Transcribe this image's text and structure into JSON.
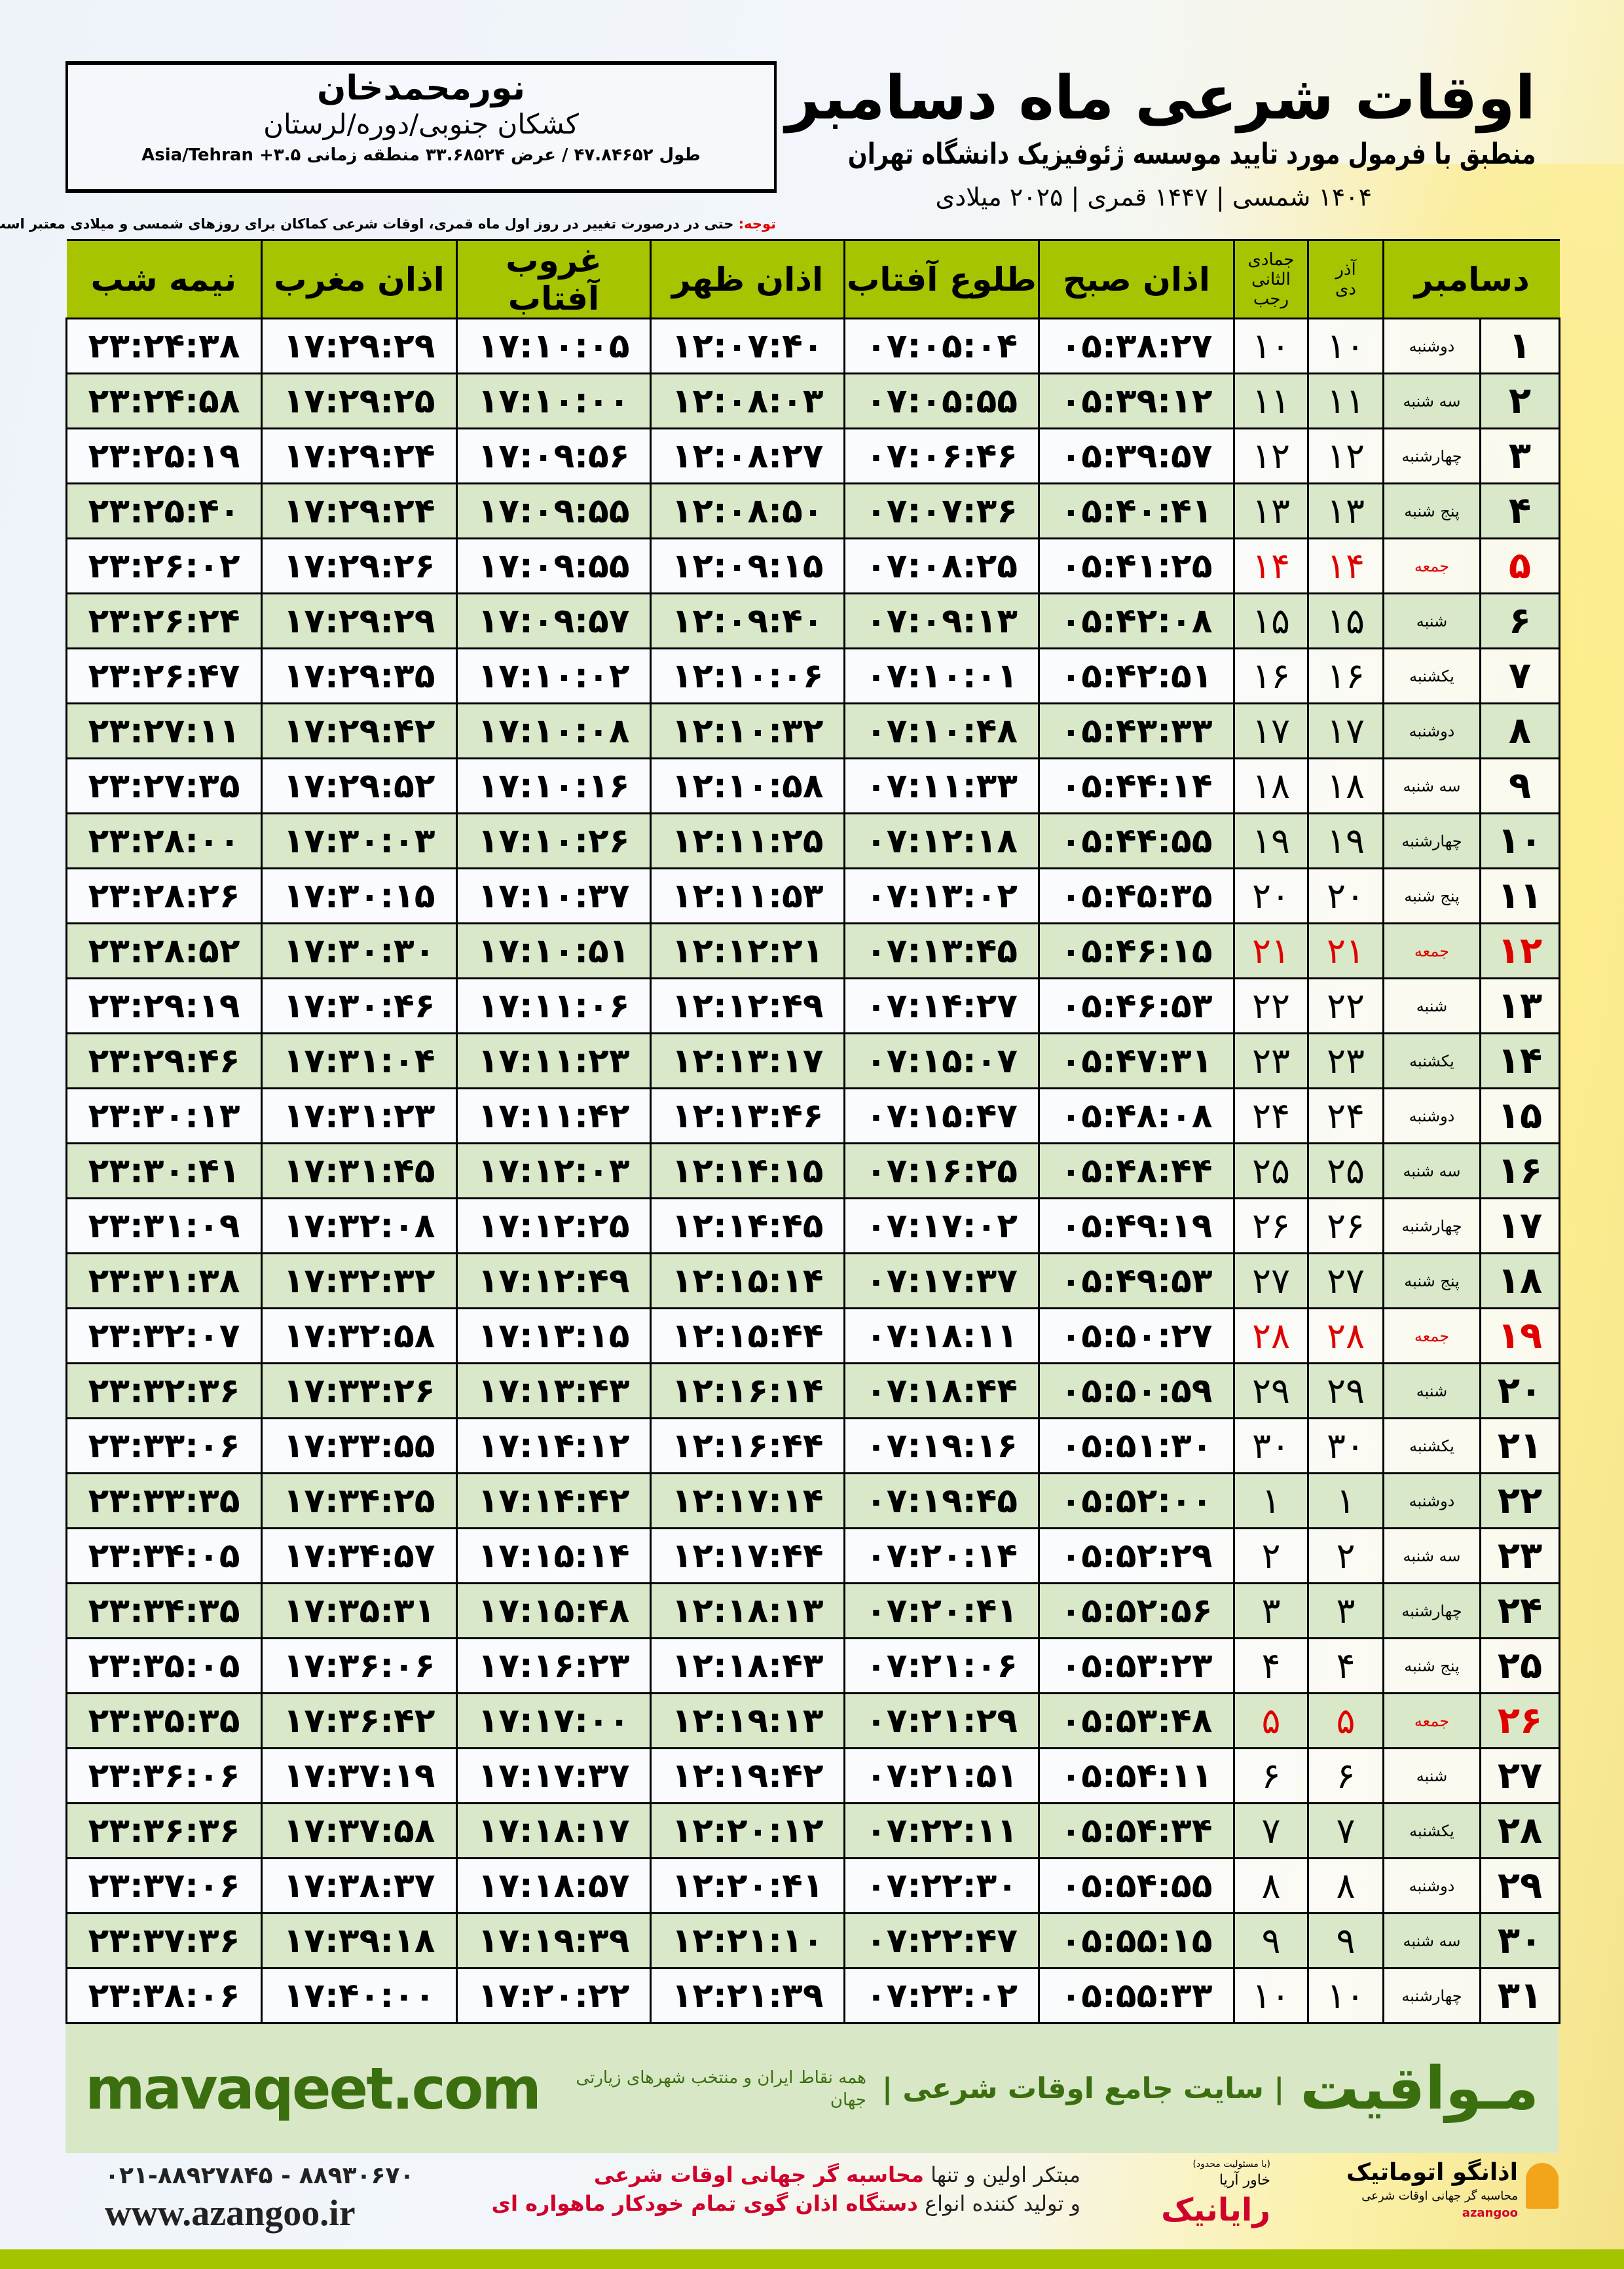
{
  "header": {
    "title": "اوقات شرعی ماه دسامبر",
    "subtitle": "منطبق با فرمول مورد تایید موسسه ژئوفیزیک دانشگاه تهران",
    "dates": "۱۴۰۴ شمسی | ۱۴۴۷ قمری | ۲۰۲۵ میلادی"
  },
  "location": {
    "city": "نورمحمدخان",
    "region": "کشکان جنوبی/دوره/لرستان",
    "coords": "طول ۴۷.۸۴۶۵۲ / عرض ۳۳.۶۸۵۲۴ منطقه زمانی ۳.۵+ Asia/Tehran"
  },
  "note": {
    "label": "توجه:",
    "text": " حتی در درصورت تغییر در روز اول ماه قمری، اوقات شرعی کماکان برای روزهای شمسی و میلادی معتبر است."
  },
  "table": {
    "headers": {
      "day": "دسامبر",
      "shamsi_top": "آذر",
      "shamsi_bottom": "دی",
      "hijri_top": "جمادی الثانی",
      "hijri_bottom": "رجب",
      "fajr": "اذان صبح",
      "sunrise": "طلوع آفتاب",
      "dhuhr": "اذان ظهر",
      "sunset": "غروب آفتاب",
      "maghrib": "اذان مغرب",
      "midnight": "نیمه شب"
    },
    "friday_color": "#e00000",
    "header_color": "#a8c400",
    "rows": [
      {
        "day": "۱",
        "weekday": "دوشنبه",
        "shamsi": "۱۰",
        "hijri": "۱۰",
        "fajr": "۰۵:۳۸:۲۷",
        "sunrise": "۰۷:۰۵:۰۴",
        "dhuhr": "۱۲:۰۷:۴۰",
        "sunset": "۱۷:۱۰:۰۵",
        "maghrib": "۱۷:۲۹:۲۹",
        "midnight": "۲۳:۲۴:۳۸"
      },
      {
        "day": "۲",
        "weekday": "سه شنبه",
        "shamsi": "۱۱",
        "hijri": "۱۱",
        "fajr": "۰۵:۳۹:۱۲",
        "sunrise": "۰۷:۰۵:۵۵",
        "dhuhr": "۱۲:۰۸:۰۳",
        "sunset": "۱۷:۱۰:۰۰",
        "maghrib": "۱۷:۲۹:۲۵",
        "midnight": "۲۳:۲۴:۵۸"
      },
      {
        "day": "۳",
        "weekday": "چهارشنبه",
        "shamsi": "۱۲",
        "hijri": "۱۲",
        "fajr": "۰۵:۳۹:۵۷",
        "sunrise": "۰۷:۰۶:۴۶",
        "dhuhr": "۱۲:۰۸:۲۷",
        "sunset": "۱۷:۰۹:۵۶",
        "maghrib": "۱۷:۲۹:۲۴",
        "midnight": "۲۳:۲۵:۱۹"
      },
      {
        "day": "۴",
        "weekday": "پنج شنبه",
        "shamsi": "۱۳",
        "hijri": "۱۳",
        "fajr": "۰۵:۴۰:۴۱",
        "sunrise": "۰۷:۰۷:۳۶",
        "dhuhr": "۱۲:۰۸:۵۰",
        "sunset": "۱۷:۰۹:۵۵",
        "maghrib": "۱۷:۲۹:۲۴",
        "midnight": "۲۳:۲۵:۴۰"
      },
      {
        "day": "۵",
        "weekday": "جمعه",
        "friday": true,
        "shamsi": "۱۴",
        "hijri": "۱۴",
        "fajr": "۰۵:۴۱:۲۵",
        "sunrise": "۰۷:۰۸:۲۵",
        "dhuhr": "۱۲:۰۹:۱۵",
        "sunset": "۱۷:۰۹:۵۵",
        "maghrib": "۱۷:۲۹:۲۶",
        "midnight": "۲۳:۲۶:۰۲"
      },
      {
        "day": "۶",
        "weekday": "شنبه",
        "shamsi": "۱۵",
        "hijri": "۱۵",
        "fajr": "۰۵:۴۲:۰۸",
        "sunrise": "۰۷:۰۹:۱۳",
        "dhuhr": "۱۲:۰۹:۴۰",
        "sunset": "۱۷:۰۹:۵۷",
        "maghrib": "۱۷:۲۹:۲۹",
        "midnight": "۲۳:۲۶:۲۴"
      },
      {
        "day": "۷",
        "weekday": "یکشنبه",
        "shamsi": "۱۶",
        "hijri": "۱۶",
        "fajr": "۰۵:۴۲:۵۱",
        "sunrise": "۰۷:۱۰:۰۱",
        "dhuhr": "۱۲:۱۰:۰۶",
        "sunset": "۱۷:۱۰:۰۲",
        "maghrib": "۱۷:۲۹:۳۵",
        "midnight": "۲۳:۲۶:۴۷"
      },
      {
        "day": "۸",
        "weekday": "دوشنبه",
        "shamsi": "۱۷",
        "hijri": "۱۷",
        "fajr": "۰۵:۴۳:۳۳",
        "sunrise": "۰۷:۱۰:۴۸",
        "dhuhr": "۱۲:۱۰:۳۲",
        "sunset": "۱۷:۱۰:۰۸",
        "maghrib": "۱۷:۲۹:۴۲",
        "midnight": "۲۳:۲۷:۱۱"
      },
      {
        "day": "۹",
        "weekday": "سه شنبه",
        "shamsi": "۱۸",
        "hijri": "۱۸",
        "fajr": "۰۵:۴۴:۱۴",
        "sunrise": "۰۷:۱۱:۳۳",
        "dhuhr": "۱۲:۱۰:۵۸",
        "sunset": "۱۷:۱۰:۱۶",
        "maghrib": "۱۷:۲۹:۵۲",
        "midnight": "۲۳:۲۷:۳۵"
      },
      {
        "day": "۱۰",
        "weekday": "چهارشنبه",
        "shamsi": "۱۹",
        "hijri": "۱۹",
        "fajr": "۰۵:۴۴:۵۵",
        "sunrise": "۰۷:۱۲:۱۸",
        "dhuhr": "۱۲:۱۱:۲۵",
        "sunset": "۱۷:۱۰:۲۶",
        "maghrib": "۱۷:۳۰:۰۳",
        "midnight": "۲۳:۲۸:۰۰"
      },
      {
        "day": "۱۱",
        "weekday": "پنج شنبه",
        "shamsi": "۲۰",
        "hijri": "۲۰",
        "fajr": "۰۵:۴۵:۳۵",
        "sunrise": "۰۷:۱۳:۰۲",
        "dhuhr": "۱۲:۱۱:۵۳",
        "sunset": "۱۷:۱۰:۳۷",
        "maghrib": "۱۷:۳۰:۱۵",
        "midnight": "۲۳:۲۸:۲۶"
      },
      {
        "day": "۱۲",
        "weekday": "جمعه",
        "friday": true,
        "shamsi": "۲۱",
        "hijri": "۲۱",
        "fajr": "۰۵:۴۶:۱۵",
        "sunrise": "۰۷:۱۳:۴۵",
        "dhuhr": "۱۲:۱۲:۲۱",
        "sunset": "۱۷:۱۰:۵۱",
        "maghrib": "۱۷:۳۰:۳۰",
        "midnight": "۲۳:۲۸:۵۲"
      },
      {
        "day": "۱۳",
        "weekday": "شنبه",
        "shamsi": "۲۲",
        "hijri": "۲۲",
        "fajr": "۰۵:۴۶:۵۳",
        "sunrise": "۰۷:۱۴:۲۷",
        "dhuhr": "۱۲:۱۲:۴۹",
        "sunset": "۱۷:۱۱:۰۶",
        "maghrib": "۱۷:۳۰:۴۶",
        "midnight": "۲۳:۲۹:۱۹"
      },
      {
        "day": "۱۴",
        "weekday": "یکشنبه",
        "shamsi": "۲۳",
        "hijri": "۲۳",
        "fajr": "۰۵:۴۷:۳۱",
        "sunrise": "۰۷:۱۵:۰۷",
        "dhuhr": "۱۲:۱۳:۱۷",
        "sunset": "۱۷:۱۱:۲۳",
        "maghrib": "۱۷:۳۱:۰۴",
        "midnight": "۲۳:۲۹:۴۶"
      },
      {
        "day": "۱۵",
        "weekday": "دوشنبه",
        "shamsi": "۲۴",
        "hijri": "۲۴",
        "fajr": "۰۵:۴۸:۰۸",
        "sunrise": "۰۷:۱۵:۴۷",
        "dhuhr": "۱۲:۱۳:۴۶",
        "sunset": "۱۷:۱۱:۴۲",
        "maghrib": "۱۷:۳۱:۲۳",
        "midnight": "۲۳:۳۰:۱۳"
      },
      {
        "day": "۱۶",
        "weekday": "سه شنبه",
        "shamsi": "۲۵",
        "hijri": "۲۵",
        "fajr": "۰۵:۴۸:۴۴",
        "sunrise": "۰۷:۱۶:۲۵",
        "dhuhr": "۱۲:۱۴:۱۵",
        "sunset": "۱۷:۱۲:۰۳",
        "maghrib": "۱۷:۳۱:۴۵",
        "midnight": "۲۳:۳۰:۴۱"
      },
      {
        "day": "۱۷",
        "weekday": "چهارشنبه",
        "shamsi": "۲۶",
        "hijri": "۲۶",
        "fajr": "۰۵:۴۹:۱۹",
        "sunrise": "۰۷:۱۷:۰۲",
        "dhuhr": "۱۲:۱۴:۴۵",
        "sunset": "۱۷:۱۲:۲۵",
        "maghrib": "۱۷:۳۲:۰۸",
        "midnight": "۲۳:۳۱:۰۹"
      },
      {
        "day": "۱۸",
        "weekday": "پنج شنبه",
        "shamsi": "۲۷",
        "hijri": "۲۷",
        "fajr": "۰۵:۴۹:۵۳",
        "sunrise": "۰۷:۱۷:۳۷",
        "dhuhr": "۱۲:۱۵:۱۴",
        "sunset": "۱۷:۱۲:۴۹",
        "maghrib": "۱۷:۳۲:۳۲",
        "midnight": "۲۳:۳۱:۳۸"
      },
      {
        "day": "۱۹",
        "weekday": "جمعه",
        "friday": true,
        "shamsi": "۲۸",
        "hijri": "۲۸",
        "fajr": "۰۵:۵۰:۲۷",
        "sunrise": "۰۷:۱۸:۱۱",
        "dhuhr": "۱۲:۱۵:۴۴",
        "sunset": "۱۷:۱۳:۱۵",
        "maghrib": "۱۷:۳۲:۵۸",
        "midnight": "۲۳:۳۲:۰۷"
      },
      {
        "day": "۲۰",
        "weekday": "شنبه",
        "shamsi": "۲۹",
        "hijri": "۲۹",
        "fajr": "۰۵:۵۰:۵۹",
        "sunrise": "۰۷:۱۸:۴۴",
        "dhuhr": "۱۲:۱۶:۱۴",
        "sunset": "۱۷:۱۳:۴۳",
        "maghrib": "۱۷:۳۳:۲۶",
        "midnight": "۲۳:۳۲:۳۶"
      },
      {
        "day": "۲۱",
        "weekday": "یکشنبه",
        "shamsi": "۳۰",
        "hijri": "۳۰",
        "fajr": "۰۵:۵۱:۳۰",
        "sunrise": "۰۷:۱۹:۱۶",
        "dhuhr": "۱۲:۱۶:۴۴",
        "sunset": "۱۷:۱۴:۱۲",
        "maghrib": "۱۷:۳۳:۵۵",
        "midnight": "۲۳:۳۳:۰۶"
      },
      {
        "day": "۲۲",
        "weekday": "دوشنبه",
        "shamsi": "۱",
        "hijri": "۱",
        "fajr": "۰۵:۵۲:۰۰",
        "sunrise": "۰۷:۱۹:۴۵",
        "dhuhr": "۱۲:۱۷:۱۴",
        "sunset": "۱۷:۱۴:۴۲",
        "maghrib": "۱۷:۳۴:۲۵",
        "midnight": "۲۳:۳۳:۳۵"
      },
      {
        "day": "۲۳",
        "weekday": "سه شنبه",
        "shamsi": "۲",
        "hijri": "۲",
        "fajr": "۰۵:۵۲:۲۹",
        "sunrise": "۰۷:۲۰:۱۴",
        "dhuhr": "۱۲:۱۷:۴۴",
        "sunset": "۱۷:۱۵:۱۴",
        "maghrib": "۱۷:۳۴:۵۷",
        "midnight": "۲۳:۳۴:۰۵"
      },
      {
        "day": "۲۴",
        "weekday": "چهارشنبه",
        "shamsi": "۳",
        "hijri": "۳",
        "fajr": "۰۵:۵۲:۵۶",
        "sunrise": "۰۷:۲۰:۴۱",
        "dhuhr": "۱۲:۱۸:۱۳",
        "sunset": "۱۷:۱۵:۴۸",
        "maghrib": "۱۷:۳۵:۳۱",
        "midnight": "۲۳:۳۴:۳۵"
      },
      {
        "day": "۲۵",
        "weekday": "پنج شنبه",
        "shamsi": "۴",
        "hijri": "۴",
        "fajr": "۰۵:۵۳:۲۳",
        "sunrise": "۰۷:۲۱:۰۶",
        "dhuhr": "۱۲:۱۸:۴۳",
        "sunset": "۱۷:۱۶:۲۳",
        "maghrib": "۱۷:۳۶:۰۶",
        "midnight": "۲۳:۳۵:۰۵"
      },
      {
        "day": "۲۶",
        "weekday": "جمعه",
        "friday": true,
        "shamsi": "۵",
        "hijri": "۵",
        "fajr": "۰۵:۵۳:۴۸",
        "sunrise": "۰۷:۲۱:۲۹",
        "dhuhr": "۱۲:۱۹:۱۳",
        "sunset": "۱۷:۱۷:۰۰",
        "maghrib": "۱۷:۳۶:۴۲",
        "midnight": "۲۳:۳۵:۳۵"
      },
      {
        "day": "۲۷",
        "weekday": "شنبه",
        "shamsi": "۶",
        "hijri": "۶",
        "fajr": "۰۵:۵۴:۱۱",
        "sunrise": "۰۷:۲۱:۵۱",
        "dhuhr": "۱۲:۱۹:۴۲",
        "sunset": "۱۷:۱۷:۳۷",
        "maghrib": "۱۷:۳۷:۱۹",
        "midnight": "۲۳:۳۶:۰۶"
      },
      {
        "day": "۲۸",
        "weekday": "یکشنبه",
        "shamsi": "۷",
        "hijri": "۷",
        "fajr": "۰۵:۵۴:۳۴",
        "sunrise": "۰۷:۲۲:۱۱",
        "dhuhr": "۱۲:۲۰:۱۲",
        "sunset": "۱۷:۱۸:۱۷",
        "maghrib": "۱۷:۳۷:۵۸",
        "midnight": "۲۳:۳۶:۳۶"
      },
      {
        "day": "۲۹",
        "weekday": "دوشنبه",
        "shamsi": "۸",
        "hijri": "۸",
        "fajr": "۰۵:۵۴:۵۵",
        "sunrise": "۰۷:۲۲:۳۰",
        "dhuhr": "۱۲:۲۰:۴۱",
        "sunset": "۱۷:۱۸:۵۷",
        "maghrib": "۱۷:۳۸:۳۷",
        "midnight": "۲۳:۳۷:۰۶"
      },
      {
        "day": "۳۰",
        "weekday": "سه شنبه",
        "shamsi": "۹",
        "hijri": "۹",
        "fajr": "۰۵:۵۵:۱۵",
        "sunrise": "۰۷:۲۲:۴۷",
        "dhuhr": "۱۲:۲۱:۱۰",
        "sunset": "۱۷:۱۹:۳۹",
        "maghrib": "۱۷:۳۹:۱۸",
        "midnight": "۲۳:۳۷:۳۶"
      },
      {
        "day": "۳۱",
        "weekday": "چهارشنبه",
        "shamsi": "۱۰",
        "hijri": "۱۰",
        "fajr": "۰۵:۵۵:۳۳",
        "sunrise": "۰۷:۲۳:۰۲",
        "dhuhr": "۱۲:۲۱:۳۹",
        "sunset": "۱۷:۲۰:۲۲",
        "maghrib": "۱۷:۴۰:۰۰",
        "midnight": "۲۳:۳۸:۰۶"
      }
    ]
  },
  "footer": {
    "site": "mavaqeet.com",
    "brand": "مـواقیت",
    "slogan": "| سایت جامع اوقات شرعی |",
    "slogan_sub": "همه نقاط ایران و منتخب شهرهای زیارتی جهان",
    "phones": "۰۲۱-۸۸۹۲۷۸۴۵ - ۸۸۹۳۰۶۷۰",
    "web": "www.azangoo.ir",
    "promo_line1_a": "مبتکر اولین و تنها ",
    "promo_line1_b": "محاسبه گر جهانی اوقات شرعی",
    "promo_line2_a": "و تولید کننده انواع ",
    "promo_line2_b": "دستگاه اذان گوی تمام خودکار ماهواره ای",
    "logo1_small": "(با مسئولیت محدود)",
    "logo1_sub": "خاور آریا",
    "logo1": "رایانیک",
    "logo2": "اذانگو اتوماتیک",
    "logo2_sub": "محاسبه گر جهانی اوقات شرعی",
    "logo2_latin": "azangoo",
    "brand_color": "#3b6e0e",
    "accent_color": "#a5c400"
  }
}
